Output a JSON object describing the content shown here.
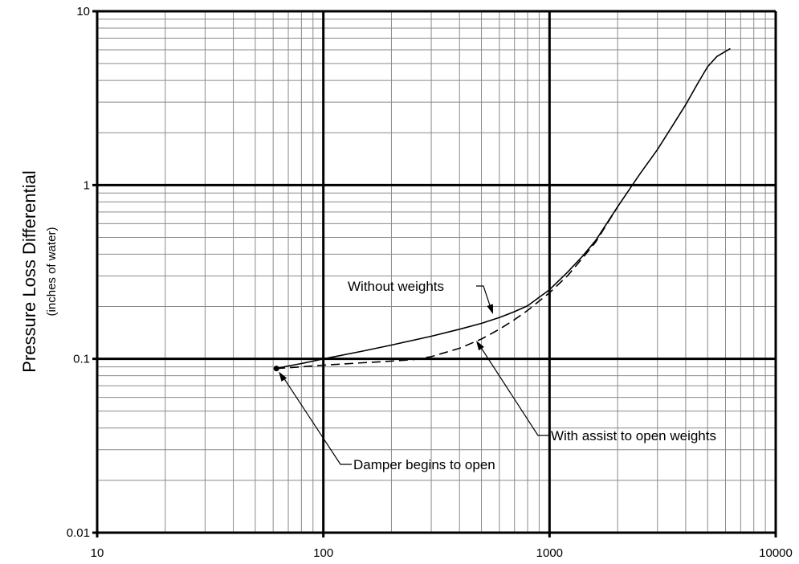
{
  "chart_data": {
    "type": "line",
    "xscale": "log",
    "yscale": "log",
    "xlim": [
      10,
      10000
    ],
    "ylim": [
      0.01,
      10
    ],
    "grid": true,
    "ylabel": "Pressure Loss Differential",
    "ylabel_sub": "(inches of water)",
    "xlabel": "",
    "x_tick_labels": [
      "10",
      "100",
      "1000",
      "10000"
    ],
    "y_tick_labels": [
      "0.01",
      "0.1",
      "1",
      "10"
    ],
    "series": [
      {
        "name": "Without weights",
        "style": "solid",
        "x": [
          62,
          70,
          80,
          90,
          100,
          150,
          200,
          300,
          400,
          500,
          600,
          700,
          800,
          1000,
          1200,
          1400,
          1600,
          2000,
          2500,
          3000,
          3500,
          4000,
          4500,
          5000,
          5500,
          6300
        ],
        "y": [
          0.088,
          0.091,
          0.094,
          0.097,
          0.1,
          0.111,
          0.12,
          0.135,
          0.148,
          0.16,
          0.173,
          0.187,
          0.202,
          0.25,
          0.315,
          0.39,
          0.48,
          0.75,
          1.15,
          1.6,
          2.2,
          2.9,
          3.8,
          4.8,
          5.5,
          6.1
        ]
      },
      {
        "name": "With assist to open weights",
        "style": "dashed",
        "x": [
          62,
          80,
          100,
          150,
          200,
          250,
          300,
          400,
          500,
          600,
          700,
          800,
          1000,
          1200,
          1400,
          1600,
          2000
        ],
        "y": [
          0.088,
          0.09,
          0.092,
          0.095,
          0.097,
          0.099,
          0.103,
          0.115,
          0.13,
          0.148,
          0.168,
          0.19,
          0.24,
          0.3,
          0.38,
          0.47,
          0.75
        ]
      }
    ],
    "annotations": [
      {
        "text": "Without weights",
        "x": 800,
        "y": 0.2
      },
      {
        "text": "With assist to open weights",
        "x": 600,
        "y": 0.0165
      },
      {
        "text": "Damper begins to open",
        "x": 62,
        "y": 0.088
      }
    ]
  }
}
